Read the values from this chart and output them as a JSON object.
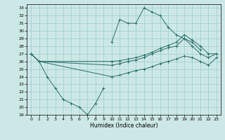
{
  "xlabel": "Humidex (Indice chaleur)",
  "bg_color": "#cce8e6",
  "grid_color": "#99cccc",
  "line_color": "#2a6e68",
  "xlim": [
    -0.5,
    23.5
  ],
  "ylim": [
    19,
    33.5
  ],
  "yticks": [
    19,
    20,
    21,
    22,
    23,
    24,
    25,
    26,
    27,
    28,
    29,
    30,
    31,
    32,
    33
  ],
  "xticks": [
    0,
    1,
    2,
    3,
    4,
    5,
    6,
    7,
    8,
    9,
    10,
    11,
    12,
    13,
    14,
    15,
    16,
    17,
    18,
    19,
    20,
    21,
    22,
    23
  ],
  "lines": [
    {
      "x": [
        0,
        1,
        10,
        11,
        12,
        13,
        14,
        15,
        16,
        17,
        18,
        19,
        20,
        21,
        22,
        23
      ],
      "y": [
        27,
        26.0,
        26.0,
        26.1,
        26.3,
        26.5,
        26.8,
        27.2,
        27.7,
        28.1,
        28.5,
        29.5,
        28.8,
        28.0,
        27.0,
        27.0
      ]
    },
    {
      "x": [
        0,
        1,
        10,
        11,
        12,
        13,
        14,
        15,
        16,
        17,
        18,
        19,
        20,
        21,
        22,
        23
      ],
      "y": [
        27,
        26.0,
        25.5,
        25.7,
        26.0,
        26.2,
        26.5,
        27.0,
        27.4,
        27.8,
        28.0,
        29.0,
        28.0,
        27.0,
        26.5,
        27.0
      ]
    },
    {
      "x": [
        0,
        1,
        10,
        11,
        12,
        13,
        14,
        15,
        16,
        17,
        18,
        19,
        20,
        21,
        22,
        23
      ],
      "y": [
        27,
        26.0,
        24.0,
        24.2,
        24.5,
        24.8,
        25.0,
        25.3,
        25.7,
        26.0,
        26.3,
        26.7,
        26.5,
        26.0,
        25.5,
        26.5
      ]
    },
    {
      "comment": "zigzag down-then-up line hours 2-9, connecting from 0-1 at ~27/26, then 2=24,3=22.5,4=21,5=20.5,6=20,7=19,8=20.5,9=22.5",
      "x": [
        0,
        1,
        2,
        3,
        4,
        5,
        6,
        7,
        8,
        9
      ],
      "y": [
        27,
        26,
        24,
        22.5,
        21.0,
        20.5,
        20.0,
        19.0,
        20.5,
        22.5
      ]
    },
    {
      "comment": "peak jagged line hours 10-21: 10=28.5,11=31.5,12=31,13=31,14=33,15=32.5,16=32,17=30.5,18=29.5,19=29,20=28.5,21=27.5",
      "x": [
        10,
        11,
        12,
        13,
        14,
        15,
        16,
        17,
        18,
        19,
        20,
        21
      ],
      "y": [
        28.5,
        31.5,
        31.0,
        31.0,
        33.0,
        32.5,
        32.0,
        30.5,
        29.5,
        29.0,
        28.5,
        27.5
      ]
    }
  ]
}
